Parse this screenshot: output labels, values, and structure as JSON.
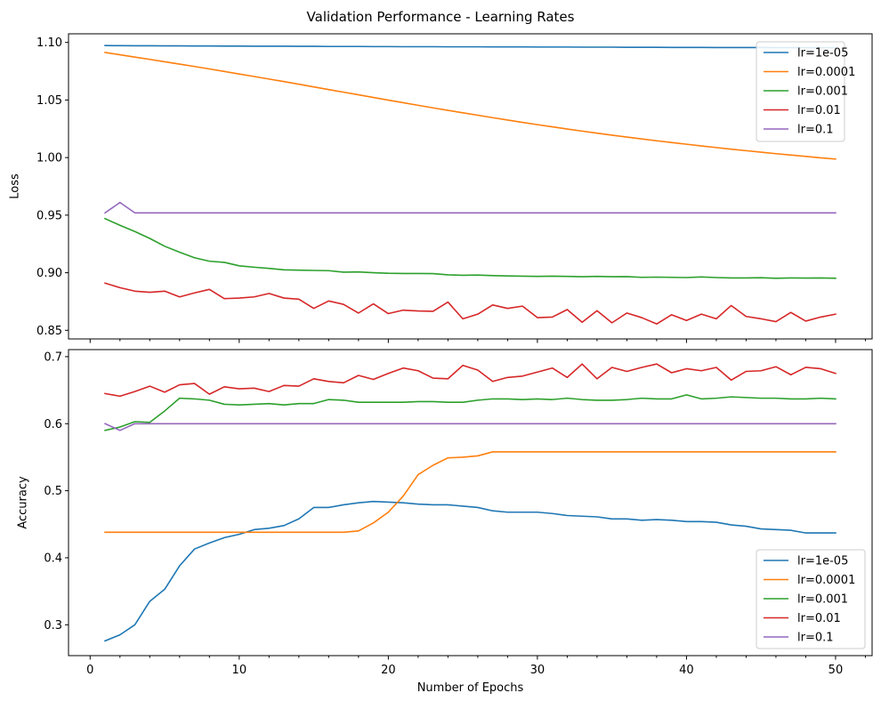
{
  "chart_data": [
    {
      "type": "line",
      "title": "Validation Performance - Learning Rates",
      "xlabel": "",
      "ylabel": "Loss",
      "xlim": [
        -1.45,
        52.45
      ],
      "ylim": [
        0.8425,
        1.1075
      ],
      "xticks": [
        0,
        10,
        20,
        30,
        40,
        50
      ],
      "yticks": [
        0.85,
        0.9,
        0.95,
        1.0,
        1.05,
        1.1
      ],
      "ytick_labels": [
        "0.85",
        "0.90",
        "0.95",
        "1.00",
        "1.05",
        "1.10"
      ],
      "show_xticklabels": false,
      "grid": false,
      "legend": "top-right",
      "x_start": 1,
      "series": [
        {
          "name": "lr=1e-05",
          "color": "#1f77b4",
          "values": [
            1.0973,
            1.0972,
            1.0971,
            1.0971,
            1.097,
            1.097,
            1.0969,
            1.0969,
            1.0968,
            1.0968,
            1.0967,
            1.0967,
            1.0967,
            1.0966,
            1.0966,
            1.0965,
            1.0965,
            1.0965,
            1.0964,
            1.0964,
            1.0963,
            1.0963,
            1.0963,
            1.0962,
            1.0962,
            1.0962,
            1.0961,
            1.0961,
            1.0961,
            1.096,
            1.096,
            1.096,
            1.0959,
            1.0959,
            1.0959,
            1.0958,
            1.0958,
            1.0958,
            1.0957,
            1.0957,
            1.0957,
            1.0956,
            1.0956,
            1.0956,
            1.0956,
            1.0955,
            1.0955,
            1.0955,
            1.0955,
            1.0954
          ]
        },
        {
          "name": "lr=0.0001",
          "color": "#ff7f0e",
          "values": [
            1.0913,
            1.0893,
            1.0873,
            1.0853,
            1.0832,
            1.0812,
            1.0791,
            1.077,
            1.0748,
            1.0726,
            1.0704,
            1.0682,
            1.066,
            1.0637,
            1.0614,
            1.0591,
            1.0568,
            1.0545,
            1.0522,
            1.0499,
            1.0477,
            1.0454,
            1.0432,
            1.041,
            1.0389,
            1.0368,
            1.0347,
            1.0326,
            1.0306,
            1.0286,
            1.0267,
            1.0248,
            1.023,
            1.0212,
            1.0195,
            1.0178,
            1.0162,
            1.0146,
            1.0131,
            1.0116,
            1.0101,
            1.0087,
            1.0073,
            1.006,
            1.0047,
            1.0034,
            1.0022,
            1.001,
            0.9998,
            0.9987
          ]
        },
        {
          "name": "lr=0.001",
          "color": "#2ca02c",
          "values": [
            0.947,
            0.9412,
            0.9358,
            0.9298,
            0.923,
            0.9178,
            0.913,
            0.91,
            0.909,
            0.906,
            0.9048,
            0.9038,
            0.9025,
            0.9022,
            0.902,
            0.9018,
            0.9005,
            0.9007,
            0.9,
            0.8995,
            0.8993,
            0.8993,
            0.8992,
            0.8982,
            0.8978,
            0.898,
            0.8975,
            0.8972,
            0.897,
            0.8968,
            0.897,
            0.8968,
            0.8965,
            0.8968,
            0.8965,
            0.8966,
            0.896,
            0.8962,
            0.896,
            0.8958,
            0.8963,
            0.8958,
            0.8955,
            0.8955,
            0.8957,
            0.8952,
            0.8955,
            0.8954,
            0.8955,
            0.8952
          ]
        },
        {
          "name": "lr=0.01",
          "color": "#d62728",
          "values": [
            0.891,
            0.887,
            0.884,
            0.883,
            0.884,
            0.879,
            0.8825,
            0.8855,
            0.8775,
            0.878,
            0.879,
            0.882,
            0.878,
            0.877,
            0.869,
            0.8755,
            0.8725,
            0.865,
            0.873,
            0.8645,
            0.8675,
            0.8668,
            0.8665,
            0.8745,
            0.86,
            0.864,
            0.872,
            0.869,
            0.871,
            0.861,
            0.8615,
            0.868,
            0.857,
            0.867,
            0.8565,
            0.865,
            0.861,
            0.8555,
            0.8635,
            0.8585,
            0.864,
            0.86,
            0.8715,
            0.862,
            0.86,
            0.8575,
            0.8655,
            0.858,
            0.8615,
            0.864
          ]
        },
        {
          "name": "lr=0.1",
          "color": "#9467bd",
          "values": [
            0.952,
            0.961,
            0.952,
            0.952,
            0.952,
            0.952,
            0.952,
            0.952,
            0.952,
            0.952,
            0.952,
            0.952,
            0.952,
            0.952,
            0.952,
            0.952,
            0.952,
            0.952,
            0.952,
            0.952,
            0.952,
            0.952,
            0.952,
            0.952,
            0.952,
            0.952,
            0.952,
            0.952,
            0.952,
            0.952,
            0.952,
            0.952,
            0.952,
            0.952,
            0.952,
            0.952,
            0.952,
            0.952,
            0.952,
            0.952,
            0.952,
            0.952,
            0.952,
            0.952,
            0.952,
            0.952,
            0.952,
            0.952,
            0.952,
            0.952
          ]
        }
      ]
    },
    {
      "type": "line",
      "title": "",
      "xlabel": "Number of Epochs",
      "ylabel": "Accuracy",
      "xlim": [
        -1.45,
        52.45
      ],
      "ylim": [
        0.254,
        0.7105
      ],
      "xticks": [
        0,
        10,
        20,
        30,
        40,
        50
      ],
      "xtick_labels": [
        "0",
        "10",
        "20",
        "30",
        "40",
        "50"
      ],
      "yticks": [
        0.3,
        0.4,
        0.5,
        0.6,
        0.7
      ],
      "ytick_labels": [
        "0.3",
        "0.4",
        "0.5",
        "0.6",
        "0.7"
      ],
      "show_xticklabels": true,
      "grid": false,
      "legend": "bottom-right",
      "x_start": 1,
      "series": [
        {
          "name": "lr=1e-05",
          "color": "#1f77b4",
          "values": [
            0.276,
            0.285,
            0.3,
            0.335,
            0.353,
            0.388,
            0.413,
            0.422,
            0.43,
            0.435,
            0.442,
            0.444,
            0.448,
            0.458,
            0.475,
            0.475,
            0.479,
            0.482,
            0.484,
            0.483,
            0.482,
            0.48,
            0.479,
            0.479,
            0.477,
            0.475,
            0.47,
            0.468,
            0.468,
            0.468,
            0.466,
            0.463,
            0.462,
            0.461,
            0.458,
            0.458,
            0.456,
            0.457,
            0.456,
            0.454,
            0.454,
            0.453,
            0.449,
            0.447,
            0.443,
            0.442,
            0.441,
            0.437,
            0.437,
            0.437
          ]
        },
        {
          "name": "lr=0.0001",
          "color": "#ff7f0e",
          "values": [
            0.438,
            0.438,
            0.438,
            0.438,
            0.438,
            0.438,
            0.438,
            0.438,
            0.438,
            0.438,
            0.438,
            0.438,
            0.438,
            0.438,
            0.438,
            0.438,
            0.438,
            0.44,
            0.452,
            0.468,
            0.492,
            0.524,
            0.538,
            0.549,
            0.55,
            0.552,
            0.558,
            0.558,
            0.558,
            0.558,
            0.558,
            0.558,
            0.558,
            0.558,
            0.558,
            0.558,
            0.558,
            0.558,
            0.558,
            0.558,
            0.558,
            0.558,
            0.558,
            0.558,
            0.558,
            0.558,
            0.558,
            0.558,
            0.558,
            0.558
          ]
        },
        {
          "name": "lr=0.001",
          "color": "#2ca02c",
          "values": [
            0.59,
            0.595,
            0.603,
            0.602,
            0.619,
            0.638,
            0.637,
            0.635,
            0.629,
            0.628,
            0.629,
            0.63,
            0.628,
            0.63,
            0.63,
            0.636,
            0.635,
            0.632,
            0.632,
            0.632,
            0.632,
            0.633,
            0.633,
            0.632,
            0.632,
            0.635,
            0.637,
            0.637,
            0.636,
            0.637,
            0.636,
            0.638,
            0.636,
            0.635,
            0.635,
            0.636,
            0.638,
            0.637,
            0.637,
            0.643,
            0.637,
            0.638,
            0.64,
            0.639,
            0.638,
            0.638,
            0.637,
            0.637,
            0.638,
            0.637
          ]
        },
        {
          "name": "lr=0.01",
          "color": "#d62728",
          "values": [
            0.645,
            0.641,
            0.648,
            0.656,
            0.647,
            0.658,
            0.66,
            0.644,
            0.655,
            0.652,
            0.653,
            0.648,
            0.657,
            0.656,
            0.667,
            0.663,
            0.661,
            0.672,
            0.666,
            0.675,
            0.683,
            0.679,
            0.668,
            0.667,
            0.687,
            0.68,
            0.663,
            0.669,
            0.671,
            0.677,
            0.683,
            0.669,
            0.689,
            0.667,
            0.684,
            0.678,
            0.684,
            0.689,
            0.676,
            0.682,
            0.679,
            0.684,
            0.665,
            0.678,
            0.679,
            0.685,
            0.673,
            0.684,
            0.682,
            0.675
          ]
        },
        {
          "name": "lr=0.1",
          "color": "#9467bd",
          "values": [
            0.6,
            0.59,
            0.6,
            0.6,
            0.6,
            0.6,
            0.6,
            0.6,
            0.6,
            0.6,
            0.6,
            0.6,
            0.6,
            0.6,
            0.6,
            0.6,
            0.6,
            0.6,
            0.6,
            0.6,
            0.6,
            0.6,
            0.6,
            0.6,
            0.6,
            0.6,
            0.6,
            0.6,
            0.6,
            0.6,
            0.6,
            0.6,
            0.6,
            0.6,
            0.6,
            0.6,
            0.6,
            0.6,
            0.6,
            0.6,
            0.6,
            0.6,
            0.6,
            0.6,
            0.6,
            0.6,
            0.6,
            0.6,
            0.6,
            0.6
          ]
        }
      ]
    }
  ]
}
